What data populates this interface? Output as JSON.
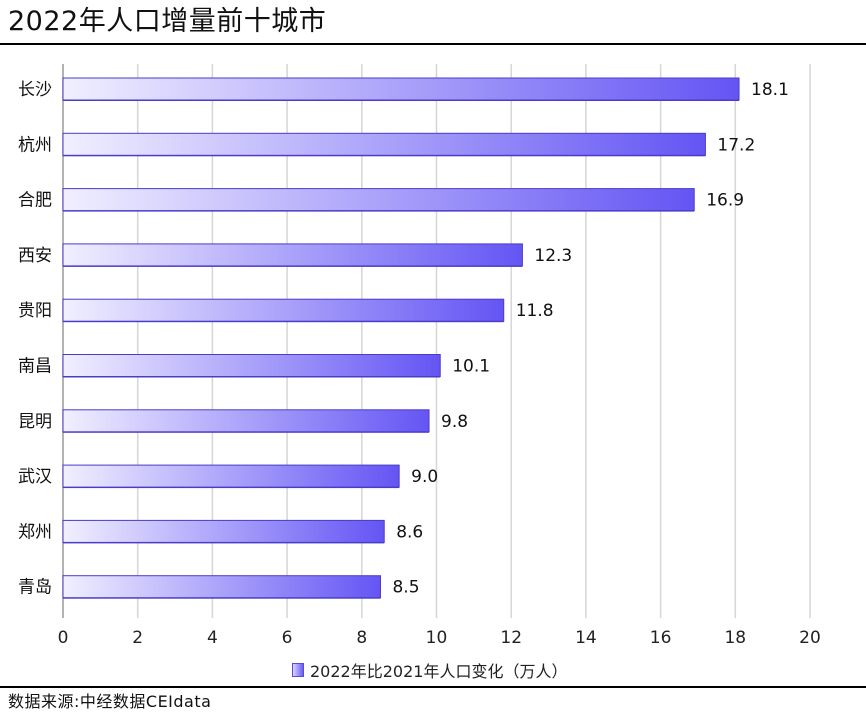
{
  "header": {
    "title": "2022年人口增量前十城市"
  },
  "footer": {
    "source": "数据来源:中经数据CEIdata"
  },
  "colors": {
    "bar_start": "#f1efff",
    "bar_end": "#6455f4",
    "bar_edge": "#4a3cc9",
    "grid": "#d6d6d6"
  },
  "chart_data": {
    "type": "bar",
    "orientation": "horizontal",
    "categories": [
      "长沙",
      "杭州",
      "合肥",
      "西安",
      "贵阳",
      "南昌",
      "昆明",
      "武汉",
      "郑州",
      "青岛"
    ],
    "series": [
      {
        "name": "2022年比2021年人口变化（万人）",
        "values": [
          18.1,
          17.2,
          16.9,
          12.3,
          11.8,
          10.1,
          9.8,
          9.0,
          8.6,
          8.5
        ]
      }
    ],
    "value_labels": [
      "18.1",
      "17.2",
      "16.9",
      "12.3",
      "11.8",
      "10.1",
      "9.8",
      "9.0",
      "8.6",
      "8.5"
    ],
    "xlim": [
      0,
      20
    ],
    "xticks": [
      0,
      2,
      4,
      6,
      8,
      10,
      12,
      14,
      16,
      18,
      20
    ],
    "grid": "vertical",
    "legend_position": "bottom-center"
  }
}
